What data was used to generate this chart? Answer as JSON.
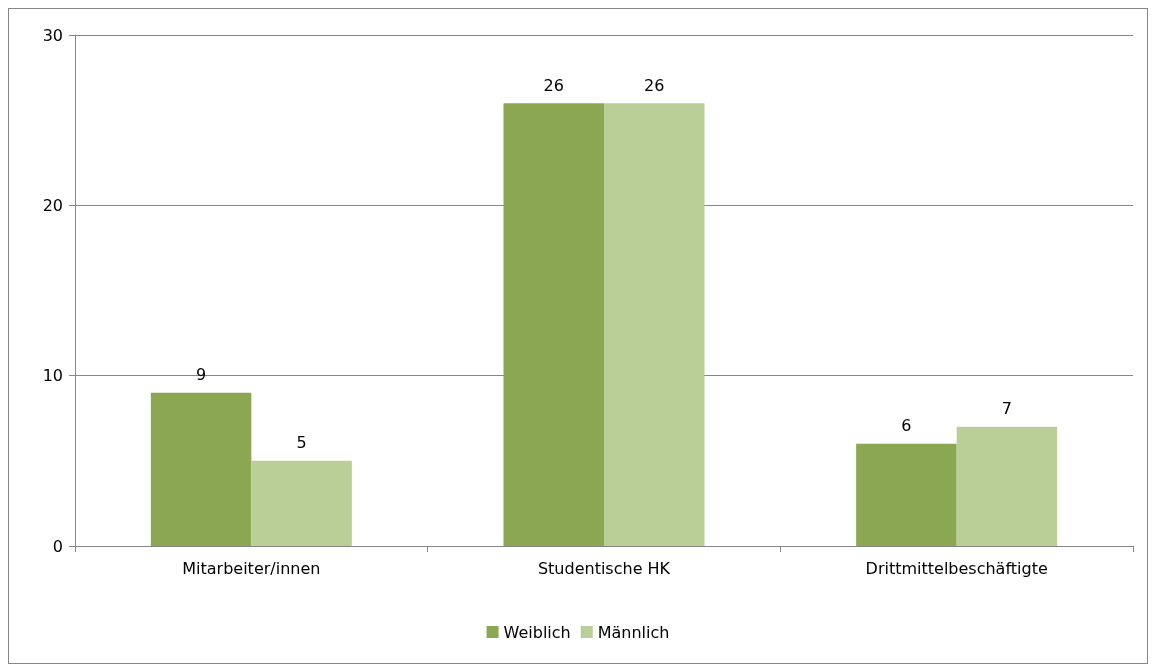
{
  "chart_data": {
    "type": "bar",
    "categories": [
      "Mitarbeiter/innen",
      "Studentische HK",
      "Drittmittelbeschäftigte"
    ],
    "series": [
      {
        "name": "Weiblich",
        "color": "#8ba752",
        "values": [
          9,
          26,
          6
        ]
      },
      {
        "name": "Männlich",
        "color": "#bacf97",
        "values": [
          5,
          26,
          7
        ]
      }
    ],
    "ylim": [
      0,
      30
    ],
    "yticks": [
      0,
      10,
      20,
      30
    ],
    "grid": "y",
    "legend": "bottom",
    "data_labels": true
  }
}
